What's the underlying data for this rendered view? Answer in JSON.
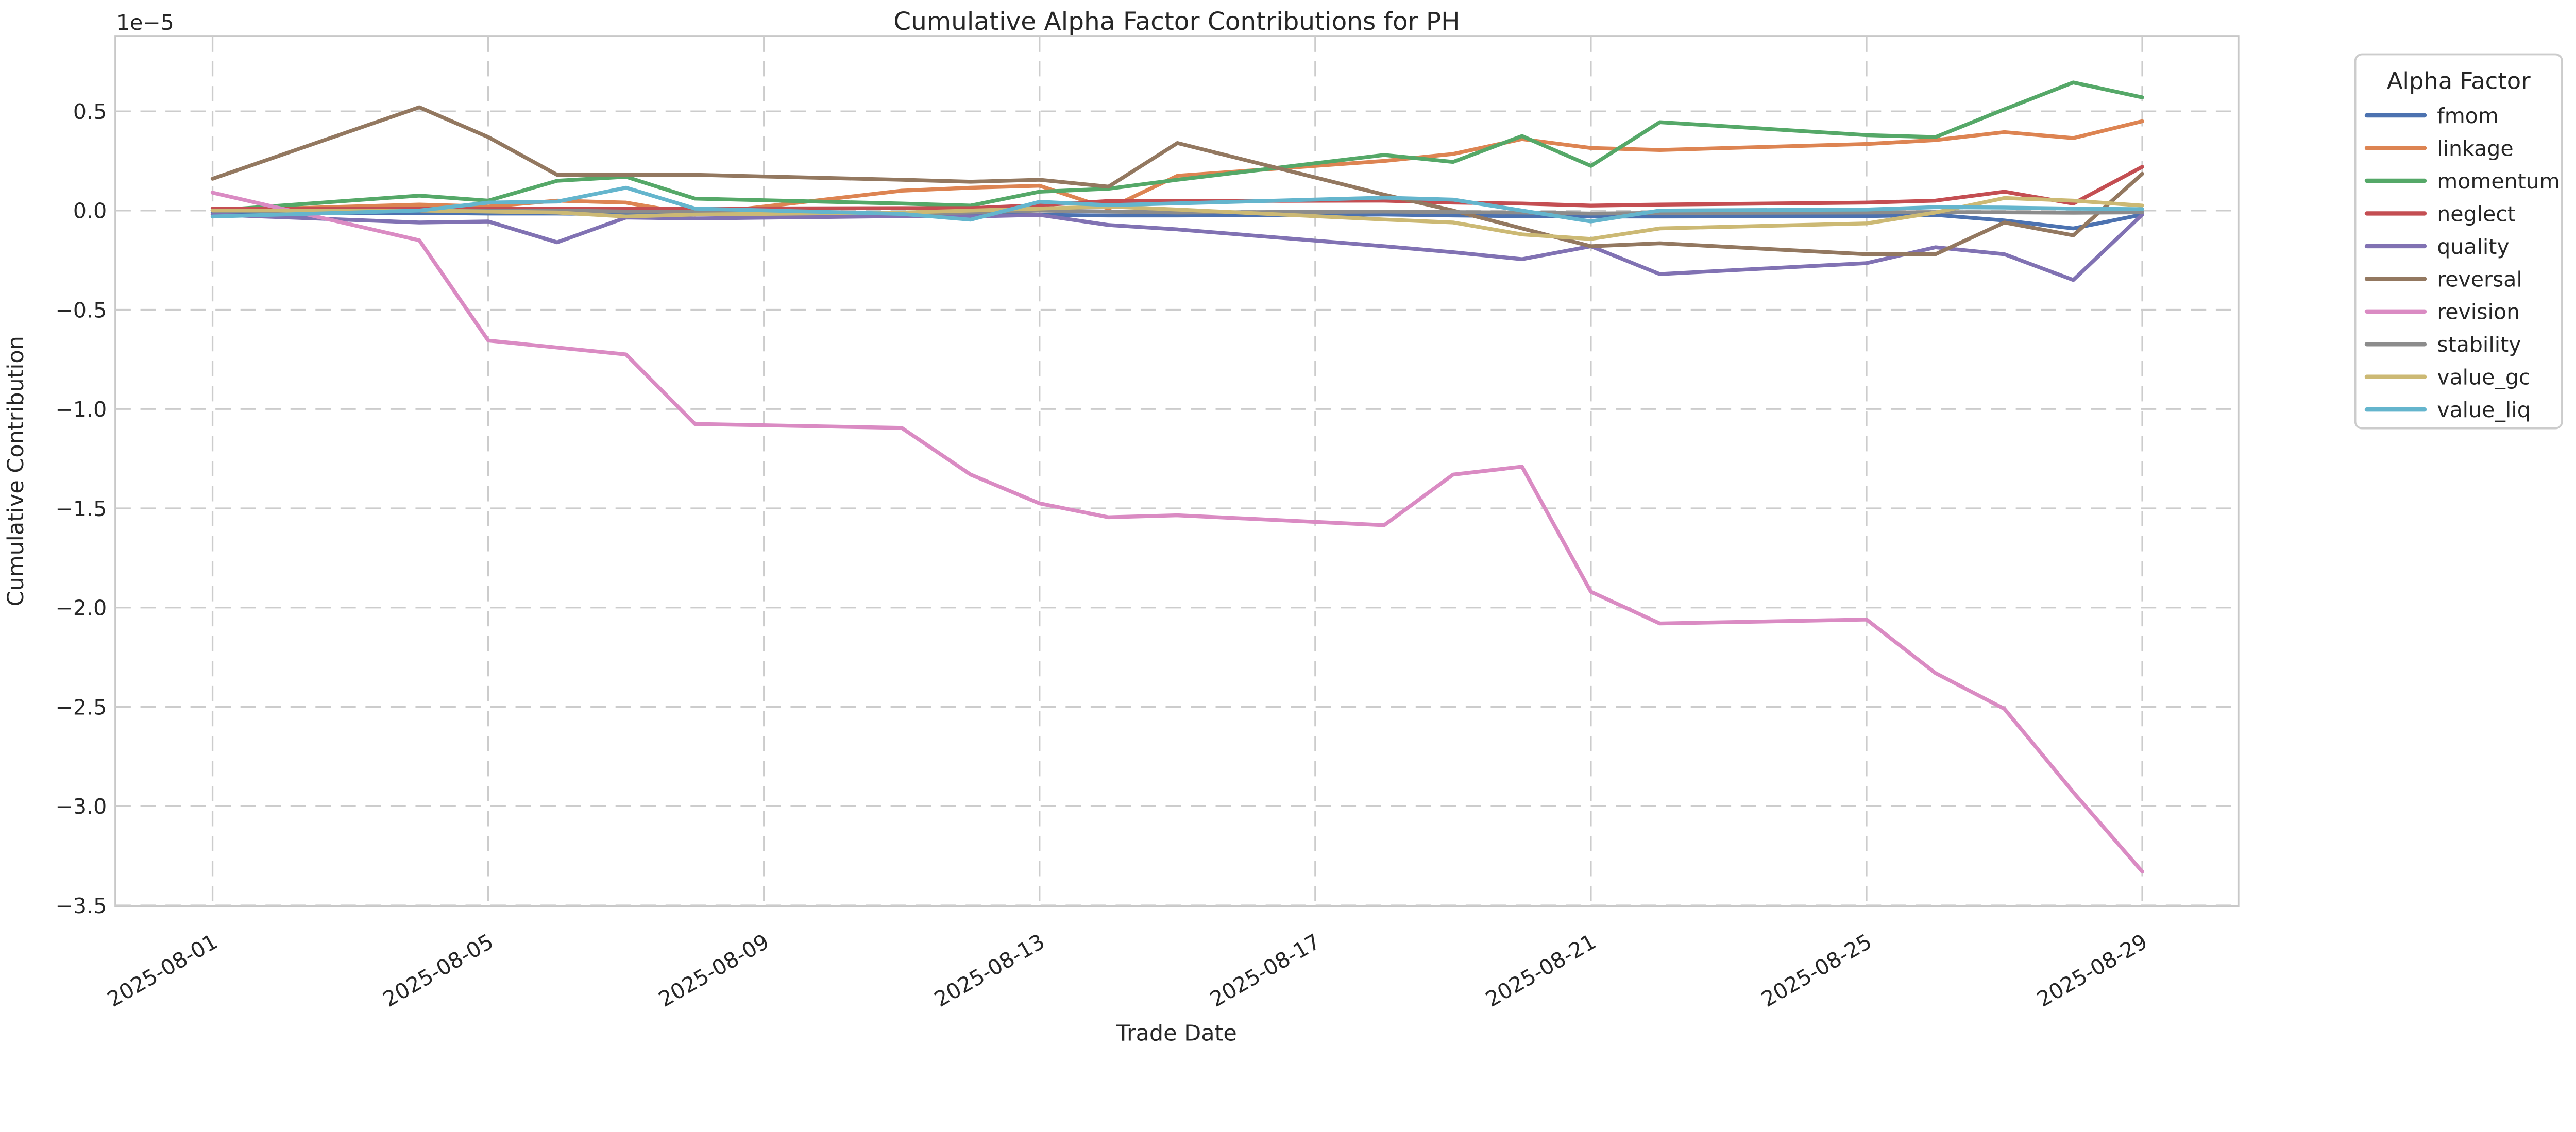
{
  "figure": {
    "title": "Cumulative Alpha Factor Contributions for PH",
    "xlabel": "Trade Date",
    "ylabel": "Cumulative Contribution",
    "offset_label": "1e−5",
    "legend_title": "Alpha Factor",
    "background_color": "#ffffff",
    "grid_color": "#cccccc",
    "spine_color": "#c8c8c8",
    "text_color": "#262626"
  },
  "chart_data": {
    "type": "line",
    "title": "Cumulative Alpha Factor Contributions for PH",
    "xlabel": "Trade Date",
    "ylabel": "Cumulative Contribution",
    "y_scale_factor": "1e-5",
    "grid": true,
    "grid_style": "dashed",
    "legend_position": "outside-upper-right",
    "ylim": [
      -3.5,
      0.88
    ],
    "x": [
      "2025-08-01",
      "2025-08-04",
      "2025-08-05",
      "2025-08-06",
      "2025-08-07",
      "2025-08-08",
      "2025-08-11",
      "2025-08-12",
      "2025-08-13",
      "2025-08-14",
      "2025-08-15",
      "2025-08-18",
      "2025-08-19",
      "2025-08-20",
      "2025-08-21",
      "2025-08-22",
      "2025-08-25",
      "2025-08-26",
      "2025-08-27",
      "2025-08-28",
      "2025-08-29"
    ],
    "x_tick_labels": [
      "2025-08-01",
      "2025-08-05",
      "2025-08-09",
      "2025-08-13",
      "2025-08-17",
      "2025-08-21",
      "2025-08-25",
      "2025-08-29"
    ],
    "y_tick_values": [
      0.5,
      0.0,
      -0.5,
      -1.0,
      -1.5,
      -2.0,
      -2.5,
      -3.0,
      -3.5
    ],
    "y_tick_labels": [
      "0.5",
      "0.0",
      "−0.5",
      "−1.0",
      "−1.5",
      "−2.0",
      "−2.5",
      "−3.0",
      "−3.5"
    ],
    "series": [
      {
        "name": "fmom",
        "color": "#4C72B0",
        "values": [
          -0.01,
          -0.012,
          -0.015,
          -0.015,
          -0.018,
          -0.018,
          -0.018,
          -0.018,
          -0.022,
          -0.025,
          -0.025,
          -0.02,
          -0.025,
          -0.028,
          -0.03,
          -0.03,
          -0.028,
          -0.022,
          -0.05,
          -0.09,
          -0.02
        ]
      },
      {
        "name": "linkage",
        "color": "#DD8452",
        "values": [
          0.0,
          0.03,
          0.02,
          0.05,
          0.04,
          -0.02,
          0.1,
          0.115,
          0.125,
          0.01,
          0.175,
          0.25,
          0.285,
          0.36,
          0.315,
          0.305,
          0.335,
          0.355,
          0.395,
          0.365,
          0.45
        ]
      },
      {
        "name": "momentum",
        "color": "#55A868",
        "values": [
          0.0,
          0.075,
          0.05,
          0.15,
          0.17,
          0.06,
          0.035,
          0.025,
          0.095,
          0.11,
          0.155,
          0.28,
          0.245,
          0.375,
          0.225,
          0.445,
          0.38,
          0.37,
          0.51,
          0.645,
          0.57
        ]
      },
      {
        "name": "neglect",
        "color": "#C44E52",
        "values": [
          0.01,
          0.01,
          0.01,
          0.01,
          0.01,
          0.01,
          0.012,
          0.012,
          0.027,
          0.048,
          0.048,
          0.05,
          0.04,
          0.035,
          0.025,
          0.03,
          0.04,
          0.05,
          0.095,
          0.035,
          0.22
        ]
      },
      {
        "name": "quality",
        "color": "#8172B3",
        "values": [
          -0.02,
          -0.06,
          -0.055,
          -0.16,
          -0.035,
          -0.04,
          -0.028,
          -0.03,
          -0.022,
          -0.073,
          -0.095,
          -0.18,
          -0.21,
          -0.245,
          -0.18,
          -0.32,
          -0.265,
          -0.185,
          -0.22,
          -0.35,
          -0.02
        ]
      },
      {
        "name": "reversal",
        "color": "#937860",
        "values": [
          0.16,
          0.52,
          0.37,
          0.18,
          0.18,
          0.18,
          0.155,
          0.145,
          0.155,
          0.12,
          0.34,
          0.08,
          0.0,
          -0.09,
          -0.18,
          -0.165,
          -0.22,
          -0.22,
          -0.06,
          -0.125,
          0.185
        ]
      },
      {
        "name": "revision",
        "color": "#DA8BC3",
        "values": [
          0.09,
          -0.15,
          -0.655,
          -0.69,
          -0.725,
          -1.075,
          -1.095,
          -1.33,
          -1.475,
          -1.545,
          -1.535,
          -1.585,
          -1.33,
          -1.29,
          -1.92,
          -2.08,
          -2.06,
          -2.33,
          -2.51,
          -2.93,
          -3.33
        ]
      },
      {
        "name": "stability",
        "color": "#8C8C8C",
        "values": [
          0.0,
          0.0,
          0.0,
          0.0,
          -0.005,
          -0.005,
          -0.015,
          -0.01,
          0.0,
          -0.005,
          -0.01,
          -0.005,
          -0.008,
          -0.01,
          -0.015,
          -0.012,
          -0.01,
          -0.008,
          -0.009,
          -0.011,
          -0.009
        ]
      },
      {
        "name": "value_gc",
        "color": "#CCB974",
        "values": [
          0.0,
          0.0,
          -0.005,
          -0.01,
          -0.03,
          -0.02,
          -0.01,
          0.0,
          0.01,
          0.02,
          0.005,
          -0.045,
          -0.06,
          -0.12,
          -0.143,
          -0.09,
          -0.065,
          -0.01,
          0.063,
          0.05,
          0.025
        ]
      },
      {
        "name": "value_liq",
        "color": "#64B5CD",
        "values": [
          -0.03,
          0.0,
          0.04,
          0.045,
          0.115,
          0.01,
          -0.017,
          -0.046,
          0.044,
          0.027,
          0.036,
          0.065,
          0.055,
          0.0,
          -0.055,
          0.0,
          0.005,
          0.017,
          0.015,
          0.01,
          0.007
        ]
      }
    ]
  }
}
